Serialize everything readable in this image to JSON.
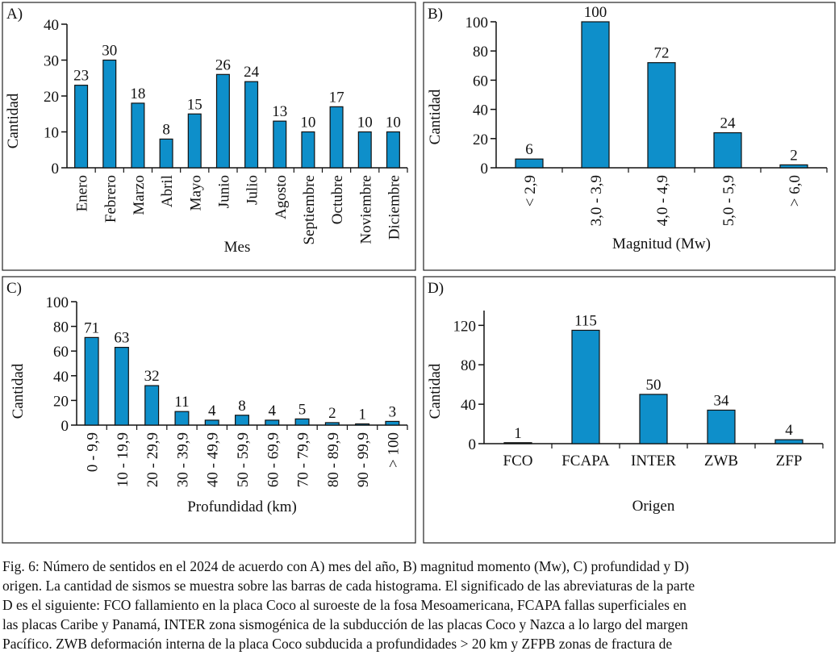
{
  "chart_data": [
    {
      "type": "bar",
      "label": "A)",
      "ylabel": "Cantidad",
      "xlabel": "Mes",
      "color": "#0e8fca",
      "categories": [
        "Enero",
        "Febrero",
        "Marzo",
        "Abril",
        "Mayo",
        "Junio",
        "Julio",
        "Agosto",
        "Septiembre",
        "Octubre",
        "Noviembre",
        "Diciembre"
      ],
      "values": [
        23,
        30,
        18,
        8,
        15,
        26,
        24,
        13,
        10,
        17,
        10,
        10
      ],
      "ylim": [
        0,
        40
      ],
      "yticks": [
        0,
        10,
        20,
        30,
        40
      ]
    },
    {
      "type": "bar",
      "label": "B)",
      "ylabel": "Cantidad",
      "xlabel": "Magnitud (Mw)",
      "color": "#0e8fca",
      "categories": [
        "< 2,9",
        "3,0 - 3,9",
        "4,0 - 4,9",
        "5,0 - 5,9",
        "> 6,0"
      ],
      "values": [
        6,
        100,
        72,
        24,
        2
      ],
      "ylim": [
        0,
        100
      ],
      "yticks": [
        0,
        20,
        40,
        60,
        80,
        100
      ]
    },
    {
      "type": "bar",
      "label": "C)",
      "ylabel": "Cantidad",
      "xlabel": "Profundidad (km)",
      "color": "#0e8fca",
      "categories": [
        "0 - 9,9",
        "10 - 19,9",
        "20 - 29,9",
        "30 - 39,9",
        "40 - 49,9",
        "50 - 59,9",
        "60 - 69,9",
        "70 - 79,9",
        "80 - 89,9",
        "90 - 99,9",
        "> 100"
      ],
      "values": [
        71,
        63,
        32,
        11,
        4,
        8,
        4,
        5,
        2,
        1,
        3
      ],
      "ylim": [
        0,
        100
      ],
      "yticks": [
        0,
        20,
        40,
        60,
        80,
        100
      ]
    },
    {
      "type": "bar",
      "label": "D)",
      "ylabel": "Cantidad",
      "xlabel": "Origen",
      "color": "#0e8fca",
      "categories": [
        "FCO",
        "FCAPA",
        "INTER",
        "ZWB",
        "ZFP"
      ],
      "values": [
        1,
        115,
        50,
        34,
        4
      ],
      "ylim": [
        0,
        135
      ],
      "yticks": [
        0,
        40,
        80,
        120
      ]
    }
  ],
  "caption": [
    "Fig. 6: Número de sentidos en el 2024 de acuerdo con A) mes del año, B) magnitud momento (Mw), C) profundidad y D)",
    "origen. La cantidad de sismos se muestra sobre las barras de cada histograma. El significado de las abreviaturas de la parte",
    "D es el siguiente: FCO fallamiento en la placa Coco al suroeste de la fosa Mesoamericana, FCAPA fallas superficiales en",
    "las placas Caribe y Panamá, INTER zona sismogénica de la subducción de las placas Coco y Nazca a lo largo del margen",
    "Pacífico. ZWB deformación interna de la placa Coco subducida a profundidades > 20 km y ZFPB zonas de fractura de"
  ]
}
